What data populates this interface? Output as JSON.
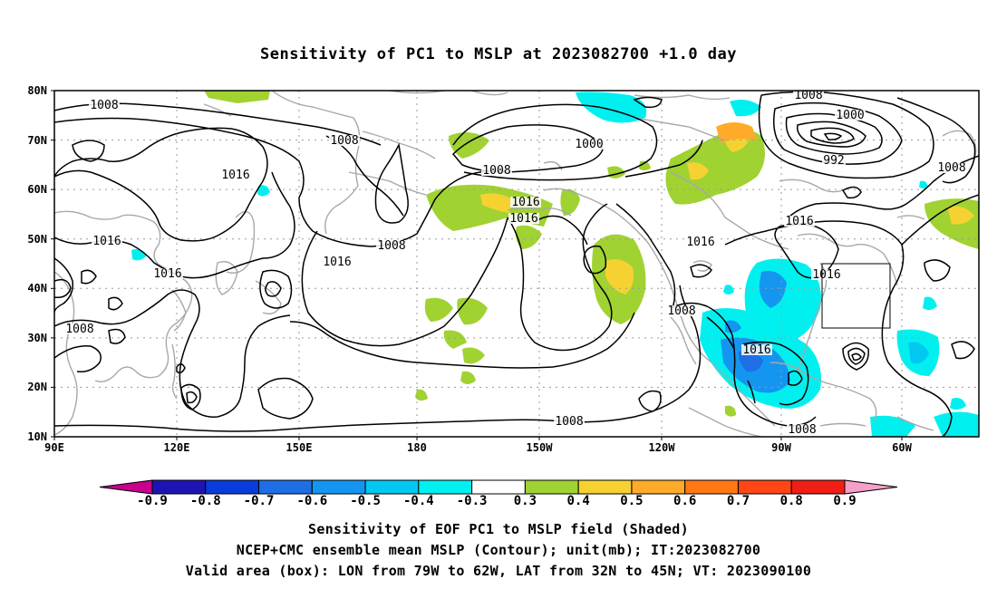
{
  "title": "Sensitivity of PC1 to MSLP at 2023082700 +1.0 day",
  "map": {
    "lat_labels": [
      "80N",
      "70N",
      "60N",
      "50N",
      "40N",
      "30N",
      "20N",
      "10N"
    ],
    "lon_labels": [
      "90E",
      "120E",
      "150E",
      "180",
      "150W",
      "120W",
      "90W",
      "60W"
    ],
    "contour_labels": [
      "1008",
      "1008",
      "1000",
      "1008",
      "1000",
      "992",
      "1016",
      "1016",
      "1016",
      "1016",
      "1016",
      "1008",
      "1016",
      "1016",
      "1016",
      "1008",
      "1008",
      "1016",
      "1008",
      "1008",
      "1008",
      "1016",
      "1008"
    ],
    "valid_box": {
      "lon_from": "79W",
      "lon_to": "62W",
      "lat_from": "32N",
      "lat_to": "45N"
    },
    "colors": {
      "land": "#a8a8a8",
      "contour": "#000000",
      "grid": "#9a9a9a"
    }
  },
  "colorbar": {
    "labels": [
      "-0.9",
      "-0.8",
      "-0.7",
      "-0.6",
      "-0.5",
      "-0.4",
      "-0.3",
      "0.3",
      "0.4",
      "0.5",
      "0.6",
      "0.7",
      "0.8",
      "0.9"
    ],
    "colors": [
      "#c8008c",
      "#1e14b4",
      "#0a3cdc",
      "#1e6ee6",
      "#1496f0",
      "#00c8f0",
      "#00f0f0",
      "#ffffff",
      "#a0d232",
      "#f5d232",
      "#ffaa28",
      "#ff7814",
      "#ff4614",
      "#f01e14",
      "#f5a0c8"
    ]
  },
  "captions": {
    "line1": "Sensitivity of EOF PC1 to MSLP field (Shaded)",
    "line2": "NCEP+CMC ensemble mean MSLP (Contour); unit(mb); IT:2023082700",
    "line3": "Valid area (box): LON from 79W to 62W, LAT from 32N to 45N; VT: 2023090100"
  }
}
